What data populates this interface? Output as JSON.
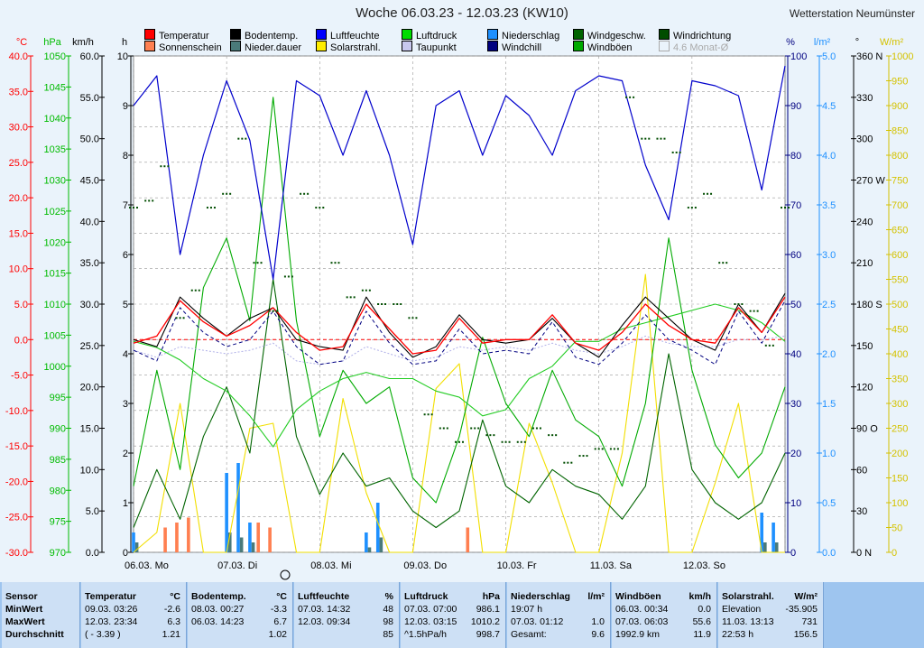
{
  "header": {
    "title": "Woche 06.03.23 - 12.03.23 (KW10)",
    "station": "Wetterstation Neumünster"
  },
  "legend": [
    {
      "label": "Temperatur",
      "color": "#ff0000"
    },
    {
      "label": "Bodentemp.",
      "color": "#000000"
    },
    {
      "label": "Luftfeuchte",
      "color": "#0000ff"
    },
    {
      "label": "Luftdruck",
      "color": "#00dd00"
    },
    {
      "label": "Niederschlag",
      "color": "#1e90ff"
    },
    {
      "label": "Windgeschw.",
      "color": "#006400"
    },
    {
      "label": "Windrichtung",
      "color": "#004d00"
    },
    {
      "label": "Sonnenschein",
      "color": "#ff7f50"
    },
    {
      "label": "Nieder.dauer",
      "color": "#4a7a7a"
    },
    {
      "label": "Solarstrahl.",
      "color": "#ffee00"
    },
    {
      "label": "Taupunkt",
      "color": "#c8c8ee"
    },
    {
      "label": "Windchill",
      "color": "#000080"
    },
    {
      "label": "Windböen",
      "color": "#00aa00"
    },
    {
      "label": "4.6 Monat-Ø",
      "color": "#cccccc",
      "disabled": true
    }
  ],
  "chart_data": {
    "type": "line",
    "x_tick_labels": [
      "06.03. Mo",
      "07.03. Di",
      "08.03. Mi",
      "09.03. Do",
      "10.03. Fr",
      "11.03. Sa",
      "12.03. So"
    ],
    "hours": [
      0,
      6,
      12,
      18,
      24,
      30,
      36,
      42,
      48,
      54,
      60,
      66,
      72,
      78,
      84,
      90,
      96,
      102,
      108,
      114,
      120,
      126,
      132,
      138,
      144,
      150,
      156,
      162,
      168
    ],
    "axes": {
      "temperature": {
        "unit": "°C",
        "ylim": [
          -30,
          40
        ],
        "ticks": [
          "40.0",
          "35.0",
          "30.0",
          "25.0",
          "20.0",
          "15.0",
          "10.0",
          "5.0",
          "0.0",
          "-5.0",
          "-10.0",
          "-15.0",
          "-20.0",
          "-25.0",
          "-30.0"
        ]
      },
      "pressure": {
        "unit": "hPa",
        "ylim": [
          970,
          1050
        ],
        "ticks": [
          "1050",
          "1045",
          "1040",
          "1035",
          "1030",
          "1025",
          "1020",
          "1015",
          "1010",
          "1005",
          "1000",
          "995",
          "990",
          "985",
          "980",
          "975",
          "970"
        ]
      },
      "wind": {
        "unit": "km/h",
        "ylim": [
          0,
          60
        ],
        "ticks": [
          "60.0",
          "55.0",
          "50.0",
          "45.0",
          "40.0",
          "35.0",
          "30.0",
          "25.0",
          "20.0",
          "15.0",
          "10.0",
          "5.0",
          "0.0"
        ]
      },
      "sunshine": {
        "unit": "h",
        "ylim": [
          0,
          10
        ],
        "ticks": [
          "10",
          "9",
          "8",
          "7",
          "6",
          "5",
          "4",
          "3",
          "2",
          "1",
          "0"
        ]
      },
      "humidity": {
        "unit": "%",
        "ylim": [
          0,
          100
        ],
        "ticks": [
          "100",
          "90",
          "80",
          "70",
          "60",
          "50",
          "40",
          "30",
          "20",
          "10",
          "0"
        ]
      },
      "precipitation": {
        "unit": "l/m²",
        "ylim": [
          0,
          5
        ],
        "ticks": [
          "5.0",
          "4.5",
          "4.0",
          "3.5",
          "3.0",
          "2.5",
          "2.0",
          "1.5",
          "1.0",
          "0.5",
          "0.0"
        ]
      },
      "direction": {
        "unit": "°",
        "ylim": [
          0,
          360
        ],
        "ticks": [
          "360 N",
          "330",
          "300",
          "270 W",
          "240",
          "210",
          "180 S",
          "150",
          "120",
          "90 O",
          "60",
          "30",
          "0 N"
        ]
      },
      "solar": {
        "unit": "W/m²",
        "ylim": [
          0,
          1000
        ],
        "ticks": [
          "1000",
          "950",
          "900",
          "850",
          "800",
          "750",
          "700",
          "650",
          "600",
          "550",
          "500",
          "450",
          "400",
          "350",
          "300",
          "250",
          "200",
          "150",
          "100",
          "50",
          "0"
        ]
      }
    },
    "series": [
      {
        "name": "Temperatur",
        "unit": "°C",
        "values": [
          -0.5,
          0.5,
          5.5,
          2.5,
          0.5,
          2.0,
          4.5,
          1.0,
          -1.5,
          -1.0,
          5.0,
          1.5,
          -2.0,
          -1.5,
          3.0,
          -0.5,
          0.0,
          0.0,
          3.5,
          -0.5,
          -1.5,
          1.0,
          5.0,
          2.0,
          0.0,
          -0.5,
          4.5,
          1.0,
          6.0
        ]
      },
      {
        "name": "Bodentemp.",
        "unit": "°C",
        "values": [
          0.0,
          -1.0,
          6.0,
          3.0,
          0.5,
          3.0,
          4.5,
          0.0,
          -1.0,
          -1.5,
          6.0,
          1.0,
          -2.5,
          -1.0,
          3.5,
          0.0,
          -0.5,
          0.0,
          3.0,
          -0.5,
          -2.5,
          2.0,
          6.0,
          3.0,
          0.0,
          -1.5,
          5.0,
          1.0,
          6.5
        ]
      },
      {
        "name": "Taupunkt",
        "unit": "°C",
        "values": [
          -1.5,
          -2.5,
          -1.0,
          -1.5,
          -2.0,
          -1.5,
          -0.5,
          -3.0,
          -3.5,
          -3.0,
          -1.0,
          -2.0,
          -3.0,
          -2.5,
          -1.0,
          -1.5,
          -1.0,
          -1.5,
          -0.5,
          -1.5,
          -2.0,
          -1.0,
          0.5,
          -0.5,
          -1.0,
          -1.0,
          0.0,
          0.0,
          0.5
        ]
      },
      {
        "name": "Windchill",
        "unit": "°C",
        "values": [
          -1.5,
          -3.0,
          4.5,
          1.0,
          -1.0,
          0.0,
          4.0,
          -1.0,
          -3.5,
          -3.0,
          4.0,
          -0.5,
          -3.5,
          -3.0,
          1.5,
          -2.0,
          -1.5,
          -2.0,
          2.5,
          -2.5,
          -3.5,
          -0.5,
          3.5,
          0.0,
          -1.5,
          -3.5,
          4.0,
          -0.5,
          5.5
        ]
      },
      {
        "name": "Luftfeuchte",
        "unit": "%",
        "values": [
          90,
          96,
          60,
          80,
          95,
          83,
          55,
          95,
          92,
          80,
          93,
          80,
          62,
          90,
          93,
          80,
          92,
          88,
          80,
          93,
          96,
          95,
          78,
          67,
          95,
          94,
          92,
          73,
          98
        ]
      },
      {
        "name": "Luftdruck",
        "unit": "hPa",
        "values": [
          1004,
          1003,
          1001,
          998,
          996,
          992,
          987,
          993,
          996,
          998,
          999,
          998,
          998,
          996,
          995,
          992,
          993,
          998,
          1000,
          1004,
          1004,
          1006,
          1007,
          1008,
          1009,
          1010,
          1009,
          1007,
          1004
        ]
      },
      {
        "name": "Windgeschw.",
        "unit": "km/h",
        "values": [
          3,
          10,
          4,
          14,
          20,
          12,
          33,
          14,
          7,
          12,
          8,
          9,
          5,
          3,
          5,
          16,
          8,
          6,
          10,
          8,
          7,
          4,
          8,
          24,
          10,
          6,
          4,
          6,
          12
        ]
      },
      {
        "name": "Windböen",
        "unit": "km/h",
        "values": [
          8,
          22,
          10,
          32,
          38,
          28,
          55,
          28,
          14,
          22,
          18,
          20,
          9,
          6,
          14,
          26,
          18,
          14,
          22,
          16,
          14,
          8,
          18,
          38,
          22,
          13,
          9,
          12,
          20
        ]
      },
      {
        "name": "Solarstrahl.",
        "unit": "W/m²",
        "values": [
          0,
          40,
          300,
          0,
          0,
          250,
          260,
          0,
          0,
          310,
          120,
          0,
          0,
          330,
          380,
          0,
          0,
          260,
          140,
          0,
          0,
          200,
          560,
          0,
          0,
          140,
          300,
          0,
          0
        ]
      }
    ],
    "bars": {
      "hours": [
        0,
        3,
        6,
        9,
        12,
        15,
        18,
        21,
        24,
        27,
        30,
        33,
        36,
        39,
        42,
        45,
        48,
        51,
        54,
        57,
        60,
        63,
        66,
        69,
        72,
        75,
        78,
        81,
        84,
        87,
        90,
        93,
        96,
        99,
        102,
        105,
        108,
        111,
        114,
        117,
        120,
        123,
        126,
        129,
        132,
        135,
        138,
        141,
        144,
        147,
        150,
        153,
        156,
        159,
        162,
        165
      ],
      "sunshine_h": [
        0,
        0,
        0,
        0.5,
        0.6,
        0.7,
        0,
        0,
        0,
        0,
        0,
        0.6,
        0.5,
        0,
        0,
        0,
        0,
        0,
        0,
        0,
        0,
        0,
        0,
        0,
        0,
        0,
        0,
        0,
        0,
        0.5,
        0,
        0,
        0,
        0,
        0,
        0,
        0,
        0,
        0,
        0,
        0,
        0,
        0,
        0,
        0,
        0,
        0,
        0,
        0,
        0,
        0,
        0,
        0,
        0,
        0,
        0
      ],
      "precip_lm2": [
        0.2,
        0,
        0,
        0,
        0,
        0,
        0,
        0,
        0.8,
        0.9,
        0.3,
        0,
        0,
        0,
        0,
        0,
        0,
        0,
        0,
        0,
        0.2,
        0.5,
        0,
        0,
        0,
        0,
        0,
        0,
        0,
        0,
        0,
        0,
        0,
        0,
        0,
        0,
        0,
        0,
        0,
        0,
        0,
        0,
        0,
        0,
        0,
        0,
        0,
        0,
        0,
        0,
        0,
        0,
        0,
        0,
        0.4,
        0.3
      ],
      "precip_duration_h": [
        0.2,
        0,
        0,
        0,
        0,
        0,
        0,
        0,
        0.4,
        0.3,
        0.2,
        0,
        0,
        0,
        0,
        0,
        0,
        0,
        0,
        0,
        0.1,
        0.3,
        0,
        0,
        0,
        0,
        0,
        0,
        0,
        0,
        0,
        0,
        0,
        0,
        0,
        0,
        0,
        0,
        0,
        0,
        0,
        0,
        0,
        0,
        0,
        0,
        0,
        0,
        0,
        0,
        0,
        0,
        0,
        0,
        0.2,
        0.2
      ]
    },
    "wind_direction_dots": {
      "hours": [
        0,
        4,
        8,
        12,
        16,
        20,
        24,
        28,
        32,
        36,
        40,
        44,
        48,
        52,
        56,
        60,
        64,
        68,
        72,
        76,
        80,
        84,
        88,
        92,
        96,
        100,
        104,
        108,
        112,
        116,
        120,
        124,
        128,
        132,
        136,
        140,
        144,
        148,
        152,
        156,
        160,
        164,
        168
      ],
      "degrees": [
        250,
        255,
        280,
        170,
        190,
        250,
        260,
        300,
        210,
        175,
        200,
        260,
        250,
        210,
        185,
        190,
        180,
        180,
        170,
        100,
        90,
        80,
        90,
        85,
        80,
        80,
        90,
        85,
        65,
        70,
        75,
        75,
        330,
        300,
        300,
        290,
        250,
        260,
        210,
        180,
        175,
        150,
        250
      ]
    }
  },
  "stats": {
    "columns": [
      {
        "name": "Sensor",
        "unit": "",
        "rows": [
          {
            "label": "MinWert",
            "value": ""
          },
          {
            "label": "MaxWert",
            "value": ""
          },
          {
            "label": "Durchschnitt",
            "value": ""
          }
        ]
      },
      {
        "name": "Temperatur",
        "unit": "°C",
        "rows": [
          {
            "label": "09.03.  03:26",
            "value": "-2.6"
          },
          {
            "label": "12.03.  23:34",
            "value": "6.3"
          },
          {
            "label": "( - 3.39 )",
            "value": "1.21"
          }
        ]
      },
      {
        "name": "Bodentemp.",
        "unit": "°C",
        "rows": [
          {
            "label": "08.03.  00:27",
            "value": "-3.3"
          },
          {
            "label": "06.03.  14:23",
            "value": "6.7"
          },
          {
            "label": "",
            "value": "1.02"
          }
        ]
      },
      {
        "name": "Luftfeuchte",
        "unit": "%",
        "rows": [
          {
            "label": "07.03.  14:32",
            "value": "48"
          },
          {
            "label": "12.03.  09:34",
            "value": "98"
          },
          {
            "label": "",
            "value": "85"
          }
        ]
      },
      {
        "name": "Luftdruck",
        "unit": "hPa",
        "rows": [
          {
            "label": "07.03.  07:00",
            "value": "986.1"
          },
          {
            "label": "12.03.  03:15",
            "value": "1010.2"
          },
          {
            "label": "^1.5hPa/h",
            "value": "998.7"
          }
        ]
      },
      {
        "name": "Niederschlag",
        "unit": "l/m²",
        "rows": [
          {
            "label": "19:07 h",
            "value": ""
          },
          {
            "label": "07.03.  01:12",
            "value": "1.0"
          },
          {
            "label": "Gesamt:",
            "value": "9.6"
          }
        ]
      },
      {
        "name": "Windböen",
        "unit": "km/h",
        "rows": [
          {
            "label": "06.03.  00:34",
            "value": "0.0"
          },
          {
            "label": "07.03.  06:03",
            "value": "55.6"
          },
          {
            "label": "1992.9 km",
            "value": "11.9"
          }
        ]
      },
      {
        "name": "Solarstrahl.",
        "unit": "W/m²",
        "rows": [
          {
            "label": "Elevation",
            "value": "-35.905"
          },
          {
            "label": "11.03.  13:13",
            "value": "731"
          },
          {
            "label": "22:53 h",
            "value": "156.5"
          }
        ]
      }
    ]
  }
}
